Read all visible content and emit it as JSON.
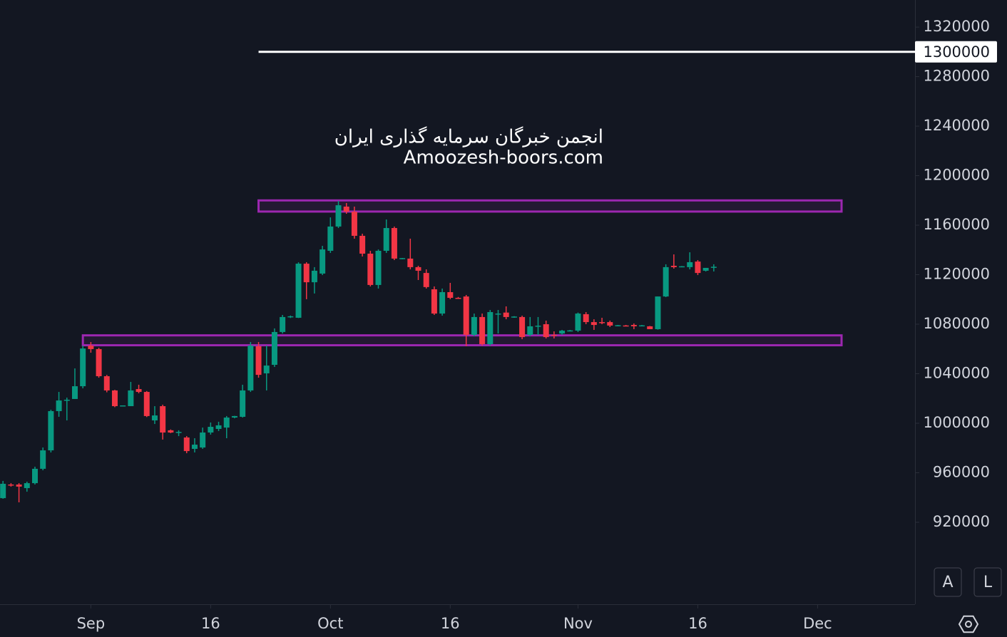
{
  "chart_data": {
    "type": "candlestick",
    "x": [
      "08-21",
      "08-22",
      "08-23",
      "08-24",
      "08-25",
      "08-26",
      "08-27",
      "08-28",
      "08-29",
      "08-30",
      "08-31",
      "09-01",
      "09-02",
      "09-03",
      "09-04",
      "09-05",
      "09-06",
      "09-07",
      "09-08",
      "09-09",
      "09-10",
      "09-11",
      "09-12",
      "09-13",
      "09-14",
      "09-15",
      "09-16",
      "09-17",
      "09-18",
      "09-19",
      "09-20",
      "09-21",
      "09-22",
      "09-23",
      "09-24",
      "09-25",
      "09-26",
      "09-27",
      "09-28",
      "09-29",
      "09-30",
      "10-01",
      "10-02",
      "10-03",
      "10-04",
      "10-05",
      "10-06",
      "10-07",
      "10-08",
      "10-09",
      "10-10",
      "10-11",
      "10-12",
      "10-13",
      "10-14",
      "10-15",
      "10-16",
      "10-17",
      "10-18",
      "10-19",
      "10-20",
      "10-21",
      "10-22",
      "10-23",
      "10-24",
      "10-25",
      "10-26",
      "10-27",
      "10-28",
      "10-29",
      "10-30",
      "10-31",
      "11-01",
      "11-02",
      "11-03",
      "11-04",
      "11-05",
      "11-06",
      "11-07",
      "11-08",
      "11-09",
      "11-10",
      "11-11",
      "11-12",
      "11-13",
      "11-14",
      "11-15",
      "11-16",
      "11-17",
      "11-18"
    ],
    "open": [
      939500,
      950500,
      950500,
      947600,
      951600,
      963200,
      978100,
      1009800,
      1018400,
      1019600,
      1029900,
      1062700,
      1059900,
      1038000,
      1026500,
      1013800,
      1013800,
      1027600,
      1025300,
      1002300,
      1013800,
      994300,
      992500,
      988500,
      979300,
      980400,
      992500,
      995400,
      996500,
      1004600,
      1005200,
      1026500,
      1062200,
      1040300,
      1047200,
      1073700,
      1085800,
      1085200,
      1128900,
      1113900,
      1120900,
      1139300,
      1158900,
      1175000,
      1170900,
      1151400,
      1137000,
      1111700,
      1139300,
      1157700,
      1133000,
      1133000,
      1126100,
      1121400,
      1108200,
      1088600,
      1105900,
      1101300,
      1102400,
      1071400,
      1085800,
      1063900,
      1088100,
      1089400,
      1085800,
      1085800,
      1071400,
      1078300,
      1080000,
      1071400,
      1072500,
      1074800,
      1074800,
      1088100,
      1081700,
      1081700,
      1081700,
      1078900,
      1079000,
      1079400,
      1078900,
      1078300,
      1076000,
      1102400,
      1127200,
      1126600,
      1126100,
      1130600,
      1123200,
      1125900
    ],
    "high": [
      953400,
      951600,
      951600,
      952800,
      964900,
      980400,
      1010900,
      1025300,
      1020700,
      1044300,
      1062700,
      1065600,
      1061000,
      1039000,
      1027000,
      1014400,
      1033400,
      1031100,
      1026000,
      1013800,
      1015000,
      995000,
      994300,
      989600,
      987900,
      996500,
      1000600,
      1001200,
      1005800,
      1006000,
      1031100,
      1065600,
      1065600,
      1062700,
      1076600,
      1087500,
      1087000,
      1130000,
      1130100,
      1126100,
      1143300,
      1166300,
      1179600,
      1177900,
      1175000,
      1153100,
      1139300,
      1140400,
      1164600,
      1158900,
      1133500,
      1149100,
      1127200,
      1124300,
      1110500,
      1108800,
      1113400,
      1102000,
      1103600,
      1088600,
      1088600,
      1091500,
      1091500,
      1094400,
      1086500,
      1086900,
      1085800,
      1085800,
      1082900,
      1074200,
      1075400,
      1075400,
      1089400,
      1089800,
      1084000,
      1085200,
      1082900,
      1079400,
      1079400,
      1080600,
      1079400,
      1078600,
      1102400,
      1128400,
      1136400,
      1127000,
      1138100,
      1131800,
      1125500,
      1128400
    ],
    "low": [
      939000,
      948800,
      936100,
      944700,
      950500,
      962000,
      976400,
      1005200,
      1002300,
      1019600,
      1028200,
      1057000,
      1036800,
      1025000,
      1013000,
      1013800,
      1013800,
      1024200,
      1005000,
      999400,
      986800,
      992000,
      989600,
      975800,
      976400,
      979300,
      990800,
      993700,
      987900,
      1004000,
      1004600,
      1025300,
      1036800,
      1026500,
      1045500,
      1072500,
      1085000,
      1085000,
      1100200,
      1104800,
      1119700,
      1137600,
      1157700,
      1169200,
      1149100,
      1134700,
      1110500,
      1108800,
      1137600,
      1131800,
      1132500,
      1124300,
      1115700,
      1108800,
      1087500,
      1086900,
      1100200,
      1100800,
      1062200,
      1070200,
      1062700,
      1062700,
      1072500,
      1084000,
      1085200,
      1067900,
      1070200,
      1071400,
      1068500,
      1068500,
      1071400,
      1074200,
      1073700,
      1080000,
      1075400,
      1080000,
      1077700,
      1078300,
      1078500,
      1076000,
      1078300,
      1076000,
      1075600,
      1101900,
      1124900,
      1126000,
      1124300,
      1119700,
      1122600,
      1122600
    ],
    "close": [
      951100,
      950000,
      948800,
      951600,
      963200,
      978100,
      1009800,
      1018400,
      1019000,
      1029900,
      1060400,
      1059900,
      1038000,
      1026500,
      1013800,
      1014400,
      1026500,
      1025300,
      1005800,
      1006300,
      992500,
      992500,
      993000,
      977500,
      982700,
      992500,
      997100,
      998300,
      1004600,
      1005800,
      1026500,
      1062700,
      1039100,
      1046600,
      1073700,
      1085800,
      1086400,
      1128900,
      1113900,
      1123200,
      1140400,
      1158900,
      1176100,
      1170900,
      1151400,
      1137000,
      1111700,
      1139300,
      1157700,
      1133000,
      1133400,
      1126100,
      1123200,
      1110000,
      1088600,
      1105900,
      1101300,
      1101000,
      1071400,
      1085800,
      1063900,
      1089800,
      1088600,
      1085800,
      1086200,
      1069600,
      1078300,
      1078800,
      1069600,
      1071000,
      1074800,
      1075000,
      1088600,
      1081700,
      1079400,
      1081400,
      1078900,
      1079200,
      1078700,
      1078300,
      1079100,
      1076000,
      1102400,
      1126100,
      1126100,
      1126800,
      1130100,
      1121400,
      1125500,
      1126400
    ],
    "up_color": "#089981",
    "down_color": "#f23645",
    "xlim": [
      "08-20",
      "12-14"
    ],
    "xticks": [
      {
        "value": "09-01",
        "label": "Sep"
      },
      {
        "value": "09-16",
        "label": "16"
      },
      {
        "value": "10-01",
        "label": "Oct"
      },
      {
        "value": "10-16",
        "label": "16"
      },
      {
        "value": "11-01",
        "label": "Nov"
      },
      {
        "value": "11-16",
        "label": "16"
      },
      {
        "value": "12-01",
        "label": "Dec"
      }
    ],
    "ylim": [
      853800,
      1341900
    ],
    "yticks": [
      920000,
      960000,
      1000000,
      1040000,
      1080000,
      1120000,
      1160000,
      1200000,
      1240000,
      1280000,
      1320000
    ],
    "hline": {
      "value": 1300000,
      "start": "09-22",
      "color": "#ffffff"
    },
    "zones": [
      {
        "top": 1180000,
        "bottom": 1171000,
        "start": "09-22",
        "end": "12-04",
        "color": "#9c27b0"
      },
      {
        "top": 1071000,
        "bottom": 1063000,
        "start": "08-31",
        "end": "12-04",
        "color": "#9c27b0"
      }
    ],
    "watermark": [
      "انجمن خبرگان سرمایه گذاری ایران",
      "Amoozesh-boors.com"
    ]
  },
  "buttons": [
    "A",
    "L"
  ]
}
